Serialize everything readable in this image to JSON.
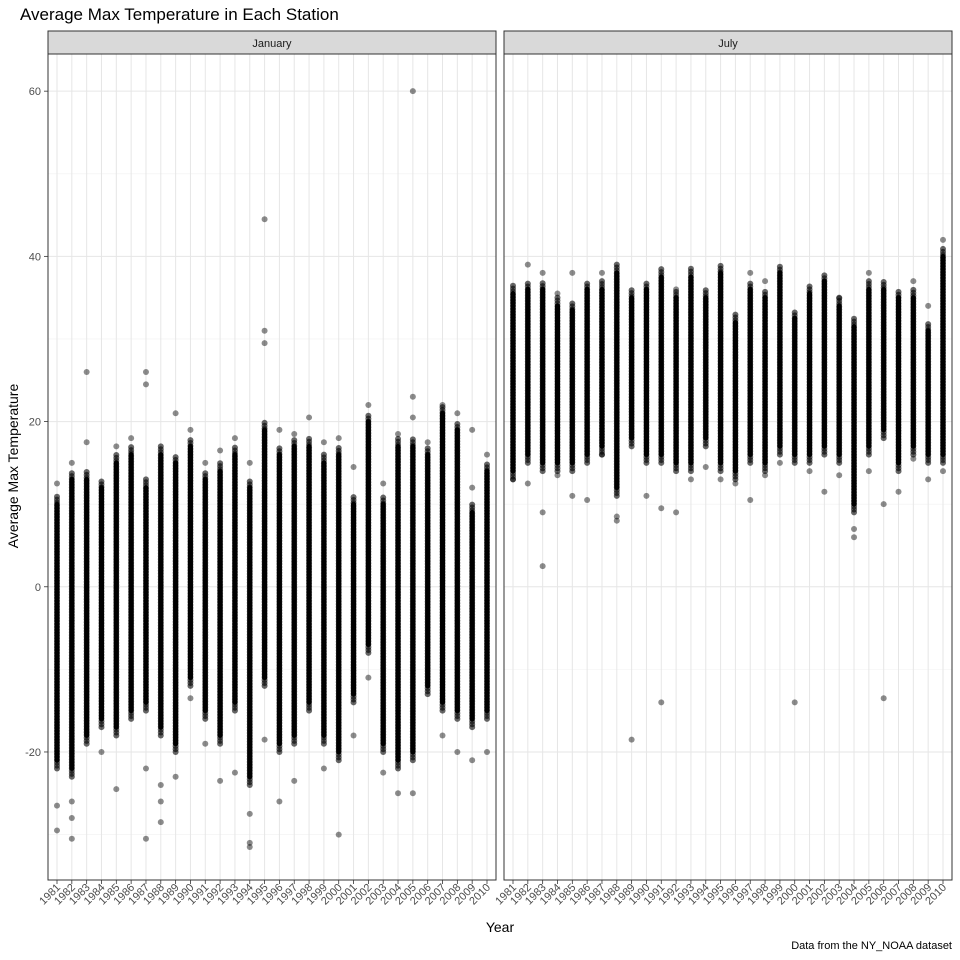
{
  "chart_data": {
    "type": "scatter",
    "title": "Average Max Temperature in Each Station",
    "xlabel": "Year",
    "ylabel": "Average Max Temperature",
    "caption": "Data from the NY_NOAA dataset",
    "ylim": [
      -35.5,
      64.5
    ],
    "yticks": [
      -20,
      0,
      20,
      40,
      60
    ],
    "years": [
      1981,
      1982,
      1983,
      1984,
      1985,
      1986,
      1987,
      1988,
      1989,
      1990,
      1991,
      1992,
      1993,
      1994,
      1995,
      1996,
      1997,
      1998,
      1999,
      2000,
      2001,
      2002,
      2003,
      2004,
      2005,
      2006,
      2007,
      2008,
      2009,
      2010
    ],
    "grid": true,
    "point_color": "#000000",
    "point_alpha": 0.45,
    "facets": [
      {
        "label": "January",
        "ranges": [
          [
            -22,
            11
          ],
          [
            -23,
            14
          ],
          [
            -19,
            14
          ],
          [
            -17,
            13
          ],
          [
            -18,
            16
          ],
          [
            -16,
            17
          ],
          [
            -15,
            13
          ],
          [
            -18,
            17
          ],
          [
            -20,
            16
          ],
          [
            -12,
            18
          ],
          [
            -16,
            14
          ],
          [
            -19,
            15
          ],
          [
            -15,
            17
          ],
          [
            -24,
            13
          ],
          [
            -12,
            20
          ],
          [
            -20,
            17
          ],
          [
            -19,
            18
          ],
          [
            -15,
            18
          ],
          [
            -19,
            16
          ],
          [
            -21,
            17
          ],
          [
            -14,
            11
          ],
          [
            -8,
            21
          ],
          [
            -20,
            11
          ],
          [
            -22,
            18
          ],
          [
            -21,
            18
          ],
          [
            -13,
            17
          ],
          [
            -15,
            22
          ],
          [
            -16,
            20
          ],
          [
            -17,
            10
          ],
          [
            -16,
            15
          ]
        ],
        "outliers": [
          [
            1981,
            -29.5
          ],
          [
            1981,
            -26.5
          ],
          [
            1981,
            12.5
          ],
          [
            1982,
            -30.5
          ],
          [
            1982,
            -28
          ],
          [
            1982,
            -26
          ],
          [
            1982,
            15
          ],
          [
            1983,
            26
          ],
          [
            1983,
            17.5
          ],
          [
            1984,
            -20
          ],
          [
            1985,
            -24.5
          ],
          [
            1985,
            17
          ],
          [
            1986,
            18
          ],
          [
            1987,
            26
          ],
          [
            1987,
            24.5
          ],
          [
            1987,
            -30.5
          ],
          [
            1987,
            -22
          ],
          [
            1988,
            -28.5
          ],
          [
            1988,
            -26
          ],
          [
            1988,
            -24
          ],
          [
            1989,
            21
          ],
          [
            1989,
            -23
          ],
          [
            1990,
            19
          ],
          [
            1990,
            -13.5
          ],
          [
            1991,
            15
          ],
          [
            1991,
            -19
          ],
          [
            1992,
            16.5
          ],
          [
            1992,
            -23.5
          ],
          [
            1993,
            18
          ],
          [
            1993,
            -22.5
          ],
          [
            1994,
            15
          ],
          [
            1994,
            -31.5
          ],
          [
            1994,
            -31
          ],
          [
            1994,
            -27.5
          ],
          [
            1995,
            44.5
          ],
          [
            1995,
            31
          ],
          [
            1995,
            29.5
          ],
          [
            1995,
            -18.5
          ],
          [
            1996,
            19
          ],
          [
            1996,
            -26
          ],
          [
            1997,
            18.5
          ],
          [
            1997,
            -23.5
          ],
          [
            1998,
            20.5
          ],
          [
            1999,
            17.5
          ],
          [
            1999,
            -22
          ],
          [
            2000,
            18
          ],
          [
            2000,
            -30
          ],
          [
            2001,
            14.5
          ],
          [
            2001,
            -18
          ],
          [
            2002,
            22
          ],
          [
            2002,
            -11
          ],
          [
            2003,
            12.5
          ],
          [
            2003,
            -22.5
          ],
          [
            2004,
            18.5
          ],
          [
            2004,
            -25
          ],
          [
            2005,
            60
          ],
          [
            2005,
            23
          ],
          [
            2005,
            20.5
          ],
          [
            2005,
            -25
          ],
          [
            2006,
            17.5
          ],
          [
            2007,
            22
          ],
          [
            2007,
            -18
          ],
          [
            2008,
            21
          ],
          [
            2008,
            -20
          ],
          [
            2009,
            19
          ],
          [
            2009,
            12
          ],
          [
            2009,
            -21
          ],
          [
            2010,
            16
          ],
          [
            2010,
            -20
          ]
        ]
      },
      {
        "label": "July",
        "ranges": [
          [
            13,
            36.5
          ],
          [
            15,
            37
          ],
          [
            14,
            37
          ],
          [
            14,
            35
          ],
          [
            14,
            34.5
          ],
          [
            15,
            37
          ],
          [
            16,
            37
          ],
          [
            11,
            39
          ],
          [
            17,
            36
          ],
          [
            15,
            37
          ],
          [
            15,
            38.5
          ],
          [
            14,
            36
          ],
          [
            14,
            38.5
          ],
          [
            17,
            36
          ],
          [
            14,
            39
          ],
          [
            13,
            33
          ],
          [
            15,
            37
          ],
          [
            14,
            36
          ],
          [
            16,
            39
          ],
          [
            15,
            33.5
          ],
          [
            15,
            36.5
          ],
          [
            16,
            38
          ],
          [
            15,
            35
          ],
          [
            9,
            32.5
          ],
          [
            16,
            37
          ],
          [
            18,
            37
          ],
          [
            14,
            36
          ],
          [
            16,
            36
          ],
          [
            15,
            32
          ],
          [
            15,
            41
          ]
        ],
        "outliers": [
          [
            1981,
            13
          ],
          [
            1982,
            39
          ],
          [
            1982,
            12.5
          ],
          [
            1983,
            38
          ],
          [
            1983,
            9
          ],
          [
            1983,
            2.5
          ],
          [
            1984,
            35.5
          ],
          [
            1984,
            13.5
          ],
          [
            1985,
            38
          ],
          [
            1985,
            11
          ],
          [
            1986,
            10.5
          ],
          [
            1987,
            38
          ],
          [
            1987,
            16
          ],
          [
            1988,
            8.5
          ],
          [
            1988,
            8
          ],
          [
            1989,
            -18.5
          ],
          [
            1990,
            11
          ],
          [
            1991,
            9.5
          ],
          [
            1991,
            -14
          ],
          [
            1992,
            36
          ],
          [
            1992,
            9
          ],
          [
            1993,
            13
          ],
          [
            1994,
            14.5
          ],
          [
            1995,
            13
          ],
          [
            1996,
            12.5
          ],
          [
            1997,
            38
          ],
          [
            1997,
            10.5
          ],
          [
            1998,
            37
          ],
          [
            1998,
            13.5
          ],
          [
            1999,
            15
          ],
          [
            2000,
            -14
          ],
          [
            2001,
            14
          ],
          [
            2002,
            11.5
          ],
          [
            2003,
            35
          ],
          [
            2003,
            13.5
          ],
          [
            2004,
            7
          ],
          [
            2004,
            6
          ],
          [
            2005,
            38
          ],
          [
            2005,
            14
          ],
          [
            2006,
            10
          ],
          [
            2006,
            -13.5
          ],
          [
            2007,
            11.5
          ],
          [
            2008,
            37
          ],
          [
            2008,
            15.5
          ],
          [
            2009,
            34
          ],
          [
            2009,
            13
          ],
          [
            2010,
            42
          ],
          [
            2010,
            14
          ]
        ]
      }
    ]
  }
}
